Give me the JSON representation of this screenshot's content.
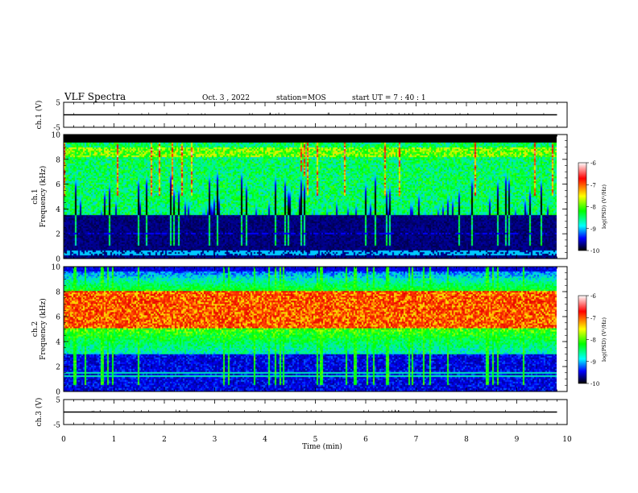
{
  "header": {
    "title": "VLF Spectra",
    "date": "Oct. 3 , 2022",
    "station": "station=MOS",
    "start": "start UT =  7 : 40 : 1"
  },
  "colorbar": {
    "label": "log(PSD) (V²/Hz)",
    "ticks": [
      "-6",
      "-7",
      "-8",
      "-9",
      "-10"
    ],
    "colors": [
      "#ffffff",
      "#ff0000",
      "#ffff00",
      "#00ff00",
      "#00ffff",
      "#0000ff",
      "#000000"
    ]
  },
  "chart_data": [
    {
      "type": "line",
      "panel": "ch1-voltage",
      "ylabel": "ch.1 (V)",
      "ylim": [
        -5,
        5
      ],
      "yticks": [
        "5",
        "-5"
      ],
      "x": [
        0,
        9.8
      ],
      "values": [
        0,
        0
      ]
    },
    {
      "type": "heatmap",
      "panel": "ch1-spectrogram",
      "ylabel": "ch.1\nFrequency (kHz)",
      "ylim": [
        0,
        10
      ],
      "yticks": [
        "0",
        "2",
        "4",
        "6",
        "8",
        "10"
      ],
      "xlim": [
        0,
        9.8
      ],
      "zlim": [
        -10,
        -6
      ],
      "z_profile": "broadband noise 3.5–9 kHz at about -8, spiky bursts near -7; below 3 kHz near -10; thin lines near 0.3–0.6 kHz"
    },
    {
      "type": "heatmap",
      "panel": "ch2-spectrogram",
      "ylabel": "ch.2\nFrequency (kHz)",
      "ylim": [
        0,
        10
      ],
      "yticks": [
        "0",
        "2",
        "4",
        "6",
        "8",
        "10"
      ],
      "xlim": [
        0,
        9.8
      ],
      "zlim": [
        -10,
        -6
      ],
      "z_profile": "strong band 5–8 kHz near -7, surrounding 3–10 kHz near -8, weaker below 3 kHz"
    },
    {
      "type": "line",
      "panel": "ch3-voltage",
      "ylabel": "ch.3 (V)",
      "ylim": [
        -5,
        5
      ],
      "yticks": [
        "5",
        "-5"
      ],
      "x": [
        0,
        9.8
      ],
      "values": [
        0,
        0
      ]
    }
  ],
  "xaxis": {
    "label": "Time (min)",
    "ticks": [
      "0",
      "1",
      "2",
      "3",
      "4",
      "5",
      "6",
      "7",
      "8",
      "9",
      "10"
    ],
    "xlim": [
      0,
      10
    ]
  }
}
